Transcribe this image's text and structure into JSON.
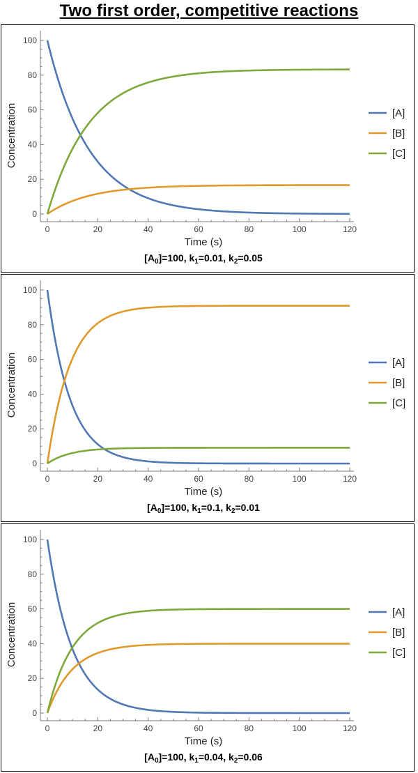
{
  "page": {
    "title": "Two first order, competitive reactions"
  },
  "colors": {
    "A": "#4f78b4",
    "B": "#e09a2c",
    "C": "#7ea83b"
  },
  "chart_data": [
    {
      "type": "line",
      "subtitle": {
        "prefix": "[A",
        "sub0": "0",
        "mid1": "]=100, k",
        "sub1": "1",
        "mid2": "=0.01, k",
        "sub2": "2",
        "end": "=0.05"
      },
      "xlabel": "Time (s)",
      "ylabel": "Concentration",
      "xlim": [
        0,
        120
      ],
      "ylim": [
        0,
        100
      ],
      "xticks": [
        0,
        20,
        40,
        60,
        80,
        100,
        120
      ],
      "yticks": [
        0,
        20,
        40,
        60,
        80,
        100
      ],
      "grid": false,
      "legend_placement": "right",
      "model": {
        "A0": 100,
        "k1": 0.01,
        "k2": 0.05
      },
      "series": [
        {
          "name": "[A]",
          "color_key": "A"
        },
        {
          "name": "[B]",
          "color_key": "B"
        },
        {
          "name": "[C]",
          "color_key": "C"
        }
      ]
    },
    {
      "type": "line",
      "subtitle": {
        "prefix": "[A",
        "sub0": "0",
        "mid1": "]=100, k",
        "sub1": "1",
        "mid2": "=0.1, k",
        "sub2": "2",
        "end": "=0.01"
      },
      "xlabel": "Time (s)",
      "ylabel": "Concentration",
      "xlim": [
        0,
        120
      ],
      "ylim": [
        0,
        100
      ],
      "xticks": [
        0,
        20,
        40,
        60,
        80,
        100,
        120
      ],
      "yticks": [
        0,
        20,
        40,
        60,
        80,
        100
      ],
      "grid": false,
      "legend_placement": "right",
      "model": {
        "A0": 100,
        "k1": 0.1,
        "k2": 0.01
      },
      "series": [
        {
          "name": "[A]",
          "color_key": "A"
        },
        {
          "name": "[B]",
          "color_key": "B"
        },
        {
          "name": "[C]",
          "color_key": "C"
        }
      ]
    },
    {
      "type": "line",
      "subtitle": {
        "prefix": "[A",
        "sub0": "0",
        "mid1": "]=100, k",
        "sub1": "1",
        "mid2": "=0.04, k",
        "sub2": "2",
        "end": "=0.06"
      },
      "xlabel": "Time (s)",
      "ylabel": "Concentration",
      "xlim": [
        0,
        120
      ],
      "ylim": [
        0,
        100
      ],
      "xticks": [
        0,
        20,
        40,
        60,
        80,
        100,
        120
      ],
      "yticks": [
        0,
        20,
        40,
        60,
        80,
        100
      ],
      "grid": false,
      "legend_placement": "right",
      "model": {
        "A0": 100,
        "k1": 0.04,
        "k2": 0.06
      },
      "series": [
        {
          "name": "[A]",
          "color_key": "A"
        },
        {
          "name": "[B]",
          "color_key": "B"
        },
        {
          "name": "[C]",
          "color_key": "C"
        }
      ]
    }
  ]
}
